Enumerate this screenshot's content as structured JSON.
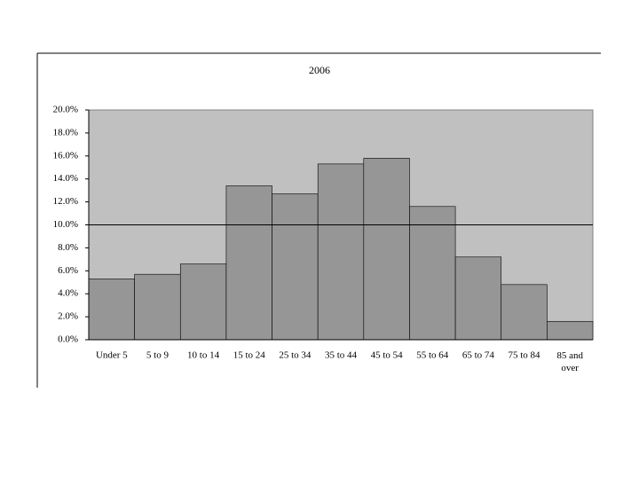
{
  "chart_data": {
    "type": "bar",
    "title": "2006",
    "categories": [
      "Under 5",
      "5 to 9",
      "10 to 14",
      "15 to 24",
      "25 to 34",
      "35 to 44",
      "45 to 54",
      "55 to 64",
      "65 to 74",
      "75 to 84",
      "85 and over"
    ],
    "values": [
      5.3,
      5.7,
      6.6,
      13.4,
      12.7,
      15.3,
      15.8,
      11.6,
      7.2,
      4.8,
      1.6
    ],
    "color": "#969696",
    "plot_background": "#c0c0c0",
    "ylim": [
      0,
      20
    ],
    "yticks": [
      {
        "value": 0,
        "label": "0.0%"
      },
      {
        "value": 2,
        "label": "2.0%"
      },
      {
        "value": 4,
        "label": "4.0%"
      },
      {
        "value": 6,
        "label": "6.0%"
      },
      {
        "value": 8,
        "label": "8.0%"
      },
      {
        "value": 10,
        "label": "10.0%"
      },
      {
        "value": 12,
        "label": "12.0%"
      },
      {
        "value": 14,
        "label": "14.0%"
      },
      {
        "value": 16,
        "label": "16.0%"
      },
      {
        "value": 18,
        "label": "18.0%"
      },
      {
        "value": 20,
        "label": "20.0%"
      }
    ],
    "reference_line": 10
  }
}
